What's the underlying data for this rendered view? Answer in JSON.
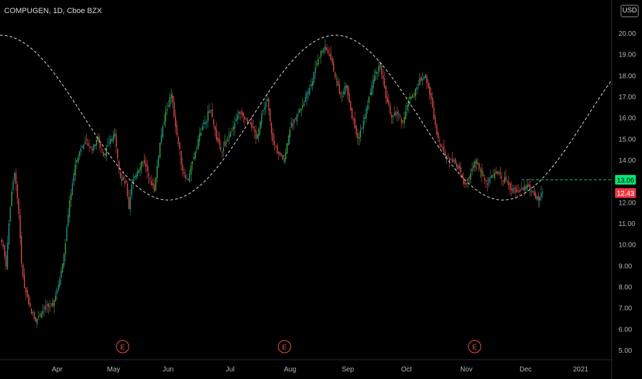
{
  "header": {
    "symbol": "COMPUGEN",
    "timeframe": "1D",
    "exchange": "Cboe BZX",
    "currency": "USD"
  },
  "colors": {
    "background": "#000000",
    "up": "#26a69a",
    "up_bright": "#3fbf45",
    "down": "#ef5350",
    "axis_text": "#b2b5be",
    "cycle": "#cfcfcf",
    "current_price_bg": "#00e676",
    "last_close_bg": "#f23645"
  },
  "chart_data": {
    "type": "candlestick",
    "title": "COMPUGEN, 1D, Cboe BZX",
    "y_ticks": [
      5,
      6,
      7,
      8,
      9,
      10,
      11,
      12,
      13,
      14,
      15,
      16,
      17,
      18,
      19,
      20
    ],
    "ylim": [
      4.7,
      20.8
    ],
    "x_tick_labels": [
      "Apr",
      "May",
      "Jun",
      "Jul",
      "Aug",
      "Sep",
      "Oct",
      "Nov",
      "Dec",
      "2021"
    ],
    "price_tags": [
      {
        "label": "13.06",
        "value": 13.06,
        "kind": "current"
      },
      {
        "label": "12.43",
        "value": 12.43,
        "kind": "last_close"
      }
    ],
    "earnings_markers": [
      {
        "label": "E",
        "month": "May"
      },
      {
        "label": "E",
        "month": "Aug"
      },
      {
        "label": "E",
        "month": "Nov"
      }
    ],
    "cycle_overlay": {
      "style": "dashed",
      "peak": 19.9,
      "trough": 12.1
    },
    "close_path": [
      [
        0,
        10.2
      ],
      [
        3,
        9.0
      ],
      [
        5,
        11.0
      ],
      [
        7,
        12.5
      ],
      [
        9,
        13.5
      ],
      [
        12,
        11.5
      ],
      [
        14,
        9.0
      ],
      [
        16,
        8.0
      ],
      [
        20,
        7.0
      ],
      [
        24,
        6.4
      ],
      [
        28,
        6.8
      ],
      [
        32,
        7.0
      ],
      [
        36,
        7.2
      ],
      [
        40,
        8.0
      ],
      [
        44,
        9.5
      ],
      [
        48,
        12.0
      ],
      [
        52,
        13.8
      ],
      [
        56,
        14.6
      ],
      [
        60,
        14.8
      ],
      [
        64,
        14.5
      ],
      [
        68,
        15.0
      ],
      [
        72,
        14.2
      ],
      [
        76,
        14.8
      ],
      [
        80,
        15.2
      ],
      [
        84,
        13.2
      ],
      [
        88,
        12.8
      ],
      [
        90,
        11.6
      ],
      [
        92,
        12.8
      ],
      [
        96,
        13.5
      ],
      [
        100,
        14.0
      ],
      [
        104,
        13.2
      ],
      [
        108,
        12.6
      ],
      [
        112,
        14.8
      ],
      [
        116,
        16.2
      ],
      [
        120,
        17.1
      ],
      [
        124,
        15.2
      ],
      [
        128,
        13.5
      ],
      [
        132,
        13.0
      ],
      [
        136,
        14.2
      ],
      [
        140,
        15.2
      ],
      [
        144,
        15.8
      ],
      [
        148,
        16.5
      ],
      [
        152,
        15.0
      ],
      [
        156,
        14.5
      ],
      [
        160,
        15.0
      ],
      [
        164,
        15.6
      ],
      [
        168,
        16.2
      ],
      [
        172,
        16.0
      ],
      [
        176,
        15.8
      ],
      [
        180,
        15.0
      ],
      [
        184,
        16.2
      ],
      [
        188,
        16.8
      ],
      [
        192,
        14.8
      ],
      [
        196,
        14.3
      ],
      [
        200,
        14.0
      ],
      [
        204,
        15.5
      ],
      [
        208,
        16.0
      ],
      [
        212,
        16.5
      ],
      [
        216,
        17.0
      ],
      [
        220,
        17.8
      ],
      [
        224,
        18.8
      ],
      [
        228,
        19.3
      ],
      [
        232,
        19.0
      ],
      [
        236,
        18.0
      ],
      [
        240,
        17.0
      ],
      [
        244,
        17.5
      ],
      [
        248,
        16.0
      ],
      [
        252,
        15.0
      ],
      [
        256,
        15.8
      ],
      [
        260,
        17.0
      ],
      [
        264,
        18.0
      ],
      [
        268,
        18.5
      ],
      [
        272,
        17.0
      ],
      [
        276,
        16.0
      ],
      [
        280,
        16.2
      ],
      [
        284,
        15.8
      ],
      [
        288,
        16.8
      ],
      [
        292,
        17.2
      ],
      [
        296,
        17.8
      ],
      [
        300,
        18.0
      ],
      [
        304,
        16.8
      ],
      [
        308,
        15.2
      ],
      [
        312,
        14.6
      ],
      [
        316,
        14.0
      ],
      [
        320,
        14.0
      ],
      [
        324,
        13.5
      ],
      [
        328,
        12.8
      ],
      [
        332,
        13.4
      ],
      [
        336,
        14.0
      ],
      [
        340,
        13.2
      ],
      [
        344,
        13.0
      ],
      [
        348,
        13.4
      ],
      [
        352,
        13.3
      ],
      [
        356,
        13.1
      ],
      [
        360,
        12.7
      ],
      [
        364,
        12.5
      ],
      [
        368,
        12.6
      ],
      [
        372,
        12.8
      ],
      [
        376,
        12.4
      ],
      [
        380,
        12.1
      ],
      [
        383,
        12.43
      ]
    ]
  }
}
